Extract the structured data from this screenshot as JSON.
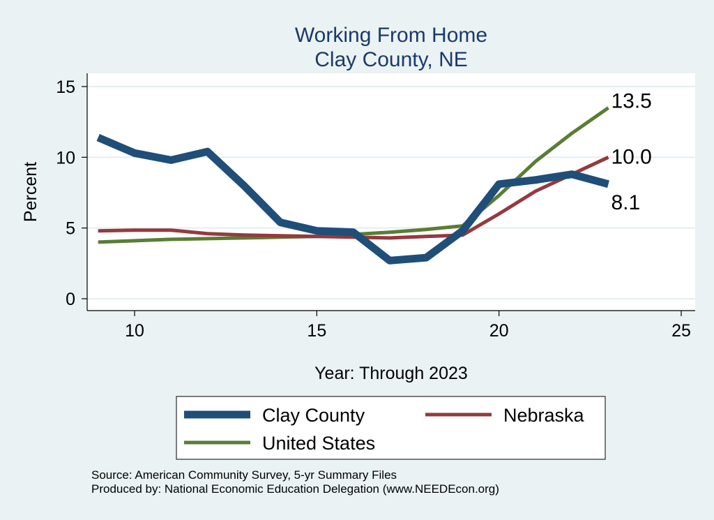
{
  "chart_data": {
    "type": "line",
    "title": "Working From Home",
    "subtitle": "Clay County, NE",
    "xlabel": "Year: Through 2023",
    "ylabel": "Percent",
    "xlim": [
      9,
      25
    ],
    "ylim": [
      0,
      15
    ],
    "xticks": [
      "10",
      "15",
      "20",
      "25"
    ],
    "yticks": [
      "0",
      "5",
      "10",
      "15"
    ],
    "grid": true,
    "legend_position": "bottom",
    "x": [
      9,
      10,
      11,
      12,
      13,
      14,
      15,
      16,
      17,
      18,
      19,
      20,
      21,
      22,
      23
    ],
    "series": [
      {
        "name": "Clay County",
        "color": "#1f4e79",
        "values": [
          11.4,
          10.3,
          9.8,
          10.4,
          8.0,
          5.4,
          4.8,
          4.7,
          2.7,
          2.9,
          4.8,
          8.1,
          8.4,
          8.8,
          8.1
        ],
        "end_label": "8.1"
      },
      {
        "name": "Nebraska",
        "color": "#943a3f",
        "values": [
          4.8,
          4.85,
          4.85,
          4.6,
          4.5,
          4.45,
          4.4,
          4.35,
          4.3,
          4.4,
          4.5,
          6.0,
          7.6,
          8.8,
          10.0
        ],
        "end_label": "10.0"
      },
      {
        "name": "United States",
        "color": "#5a7d35",
        "values": [
          4.0,
          4.1,
          4.2,
          4.25,
          4.3,
          4.35,
          4.4,
          4.55,
          4.7,
          4.9,
          5.15,
          7.3,
          9.7,
          11.7,
          13.5
        ],
        "end_label": "13.5"
      }
    ]
  },
  "footer": {
    "source": "Source: American Community Survey, 5-yr Summary Files",
    "produced_by": "Produced by: National Economic Education Delegation (www.NEEDEcon.org)"
  }
}
